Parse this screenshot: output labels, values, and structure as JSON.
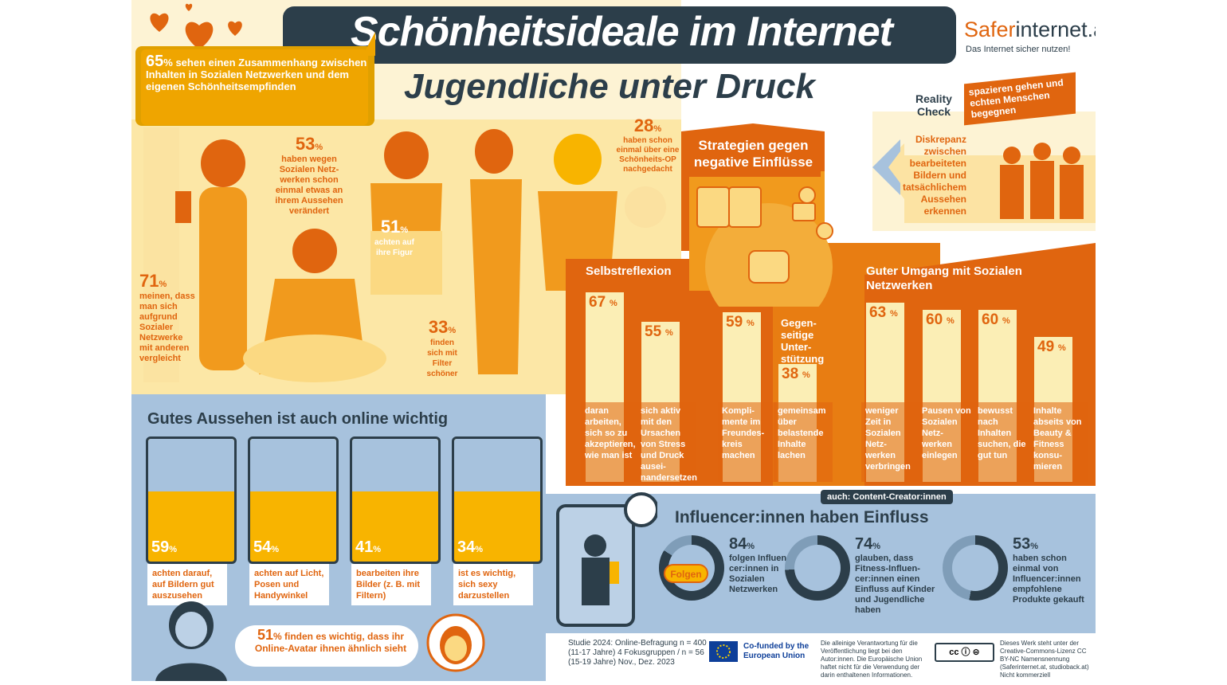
{
  "header": {
    "title": "Schönheitsideale im Internet",
    "subtitle": "Jugendliche unter Druck",
    "brand_orange": "Safer",
    "brand_dark": "internet.at",
    "tagline": "Das Internet sicher nutzen!"
  },
  "stats_left": {
    "s65": {
      "value": "65",
      "unit": "%",
      "text": "sehen einen Zusammenhang zwischen Inhalten in Sozialen Netzwerken und dem eigenen Schönheitsempfinden"
    },
    "s53": {
      "value": "53",
      "unit": "%",
      "text": "haben wegen Sozialen Netz-werken schon einmal etwas an ihrem Aussehen verändert"
    },
    "s28": {
      "value": "28",
      "unit": "%",
      "text": "haben schon einmal über eine Schönheits-OP nachgedacht"
    },
    "s71": {
      "value": "71",
      "unit": "%",
      "text": "meinen, dass man sich aufgrund Sozialer Netzwerke mit anderen vergleicht"
    },
    "s51": {
      "value": "51",
      "unit": "%",
      "text": "achten auf ihre Figur"
    },
    "s33": {
      "value": "33",
      "unit": "%",
      "text": "finden sich mit Filter schöner"
    }
  },
  "reality_check": {
    "label": "Reality Check",
    "action": "spazieren gehen und echten Menschen begegnen",
    "text": "Diskrepanz zwischen bearbeiteten Bildern und tatsächlichem Aussehen erkennen"
  },
  "strategies": {
    "title": "Strategien gegen negative Einflüsse",
    "selbstreflexion": "Selbstreflexion",
    "support": "Gegen-seitige Unter-stützung",
    "social": "Guter Umgang mit Sozialen Netzwerken",
    "bars": [
      {
        "value": "67",
        "unit": "%",
        "pct": 67,
        "label": "daran arbeiten, sich so zu akzeptieren, wie man ist"
      },
      {
        "value": "55",
        "unit": "%",
        "pct": 55,
        "label": "sich aktiv mit den Ursachen von Stress und Druck ausei-nandersetzen"
      },
      {
        "value": "59",
        "unit": "%",
        "pct": 59,
        "label": "Kompli-mente im Freundes-kreis machen"
      },
      {
        "value": "38",
        "unit": "%",
        "pct": 38,
        "label": "gemeinsam über belastende Inhalte lachen"
      },
      {
        "value": "63",
        "unit": "%",
        "pct": 63,
        "label": "weniger Zeit in Sozialen Netz-werken verbringen"
      },
      {
        "value": "60",
        "unit": "%",
        "pct": 60,
        "label": "Pausen von Sozialen Netz-werken einlegen"
      },
      {
        "value": "60",
        "unit": "%",
        "pct": 60,
        "label": "bewusst nach Inhalten suchen, die gut tun"
      },
      {
        "value": "49",
        "unit": "%",
        "pct": 49,
        "label": "Inhalte abseits von Beauty & Fitness konsu-mieren"
      }
    ]
  },
  "online": {
    "title": "Gutes Aussehen ist auch online wichtig",
    "cards": [
      {
        "value": "59",
        "unit": "%",
        "text": "achten darauf, auf Bildern gut auszusehen"
      },
      {
        "value": "54",
        "unit": "%",
        "text": "achten auf Licht, Posen und Handywinkel"
      },
      {
        "value": "41",
        "unit": "%",
        "text": "bearbeiten ihre Bilder (z. B. mit Filtern)"
      },
      {
        "value": "34",
        "unit": "%",
        "text": "ist es wichtig, sich sexy darzustellen"
      }
    ],
    "avatar": {
      "value": "51",
      "unit": "%",
      "text": "finden es wichtig, dass ihr Online-Avatar ihnen ähnlich sieht"
    }
  },
  "influencer": {
    "tag": "auch: Content-Creator:innen",
    "title": "Influencer:innen haben Einfluss",
    "follow_label": "Folgen",
    "stats": [
      {
        "value": "84",
        "unit": "%",
        "pct": 84,
        "text": "folgen Influen-cer:innen in Sozialen Netzwerken"
      },
      {
        "value": "74",
        "unit": "%",
        "pct": 74,
        "text": "glauben, dass Fitness-Influen-cer:innen einen Einfluss auf Kinder und Jugendliche haben"
      },
      {
        "value": "53",
        "unit": "%",
        "pct": 53,
        "text": "haben schon einmal von Influencer:innen empfohlene Produkte gekauft"
      }
    ]
  },
  "footer": {
    "study": "Studie 2024: Online-Befragung n = 400 (11-17 Jahre) 4 Fokusgruppen / n = 56 (15-19 Jahre) Nov., Dez. 2023",
    "eu": "Co-funded by the European Union",
    "disclaimer": "Die alleinige Verantwortung für die Veröffentlichung liegt bei den Autor:innen. Die Europäische Union haftet nicht für die Verwendung der darin enthaltenen Informationen.",
    "license": "Dieses Werk steht unter der Creative-Commons-Lizenz CC BY-NC Namensnennung (Saferinternet.at, studioback.at) Nicht kommerziell"
  },
  "colors": {
    "orange": "#e0650f",
    "dark": "#2c3e4a",
    "yellow": "#f8b400",
    "light": "#fbeeb5",
    "blue": "#a7c2dd"
  }
}
